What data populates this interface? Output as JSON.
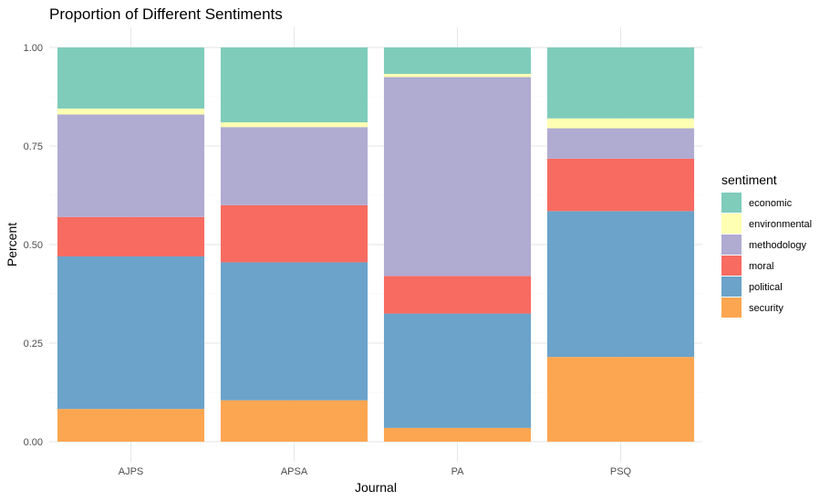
{
  "chart_data": {
    "type": "bar",
    "stacked": true,
    "title": "Proportion of Different Sentiments",
    "xlabel": "Journal",
    "ylabel": "Percent",
    "ylim": [
      0,
      1
    ],
    "yticks": [
      "0.00",
      "0.25",
      "0.50",
      "0.75",
      "1.00"
    ],
    "grid": true,
    "legend_position": "right",
    "legend_title": "sentiment",
    "categories": [
      "AJPS",
      "APSA",
      "PA",
      "PSQ"
    ],
    "series": [
      {
        "name": "economic",
        "color": "#7fccbb",
        "values": [
          0.155,
          0.19,
          0.067,
          0.18
        ]
      },
      {
        "name": "environmental",
        "color": "#ffffb3",
        "values": [
          0.015,
          0.012,
          0.008,
          0.025
        ]
      },
      {
        "name": "methodology",
        "color": "#b0abd1",
        "values": [
          0.26,
          0.198,
          0.505,
          0.077
        ]
      },
      {
        "name": "moral",
        "color": "#f76b61",
        "values": [
          0.1,
          0.145,
          0.095,
          0.133
        ]
      },
      {
        "name": "political",
        "color": "#6ba3ca",
        "values": [
          0.387,
          0.35,
          0.29,
          0.37
        ]
      },
      {
        "name": "security",
        "color": "#fca651",
        "values": [
          0.083,
          0.105,
          0.035,
          0.215
        ]
      }
    ]
  }
}
